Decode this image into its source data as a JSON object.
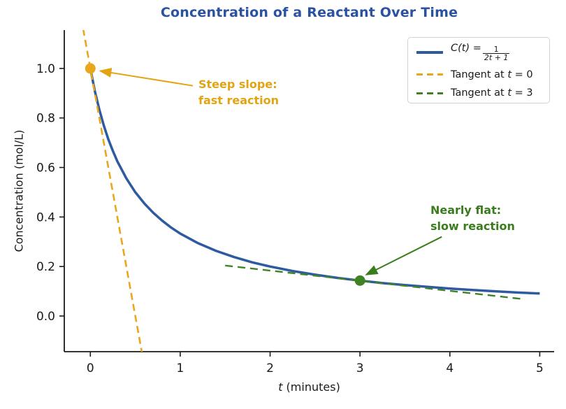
{
  "title": {
    "text": "Concentration of a Reactant Over Time",
    "color": "#2b52a1"
  },
  "axes": {
    "x_label_var": "t",
    "x_label_rest": " (minutes)",
    "y_label": "Concentration (mol/L)",
    "x_tick_labels": [
      "0",
      "1",
      "2",
      "3",
      "4",
      "5"
    ],
    "y_tick_labels": [
      "0.0",
      "0.2",
      "0.4",
      "0.6",
      "0.8",
      "1.0"
    ],
    "axis_color": "#1a1a1a"
  },
  "legend": {
    "entries": [
      {
        "kind": "fraction",
        "prefix": "C(t)",
        "equals": "=",
        "frac_num": "1",
        "frac_den": "2t + 1",
        "full_label": "C(t) = 1/(2t+1)",
        "color": "#2e5b9f",
        "style": "solid"
      },
      {
        "kind": "plain",
        "pre": "Tangent at ",
        "var": "t",
        "post": " = 0",
        "full_label": "Tangent at t = 0",
        "color": "#e8a71c",
        "style": "dashed"
      },
      {
        "kind": "plain",
        "pre": "Tangent at ",
        "var": "t",
        "post": " = 3",
        "full_label": "Tangent at t = 3",
        "color": "#3e8427",
        "style": "dashed"
      }
    ]
  },
  "annotations": [
    {
      "lines": [
        "Steep slope:",
        "fast reaction"
      ],
      "color": "#e3a313",
      "arrow_from": [
        1.14,
        0.93
      ],
      "arrow_to": [
        0.11,
        0.99
      ]
    },
    {
      "lines": [
        "Nearly flat:",
        "slow reaction"
      ],
      "color": "#3a7d1f",
      "arrow_from": [
        3.91,
        0.32
      ],
      "arrow_to": [
        3.07,
        0.167
      ]
    }
  ],
  "chart_data": {
    "type": "line",
    "title": "Concentration of a Reactant Over Time",
    "xlabel": "t (minutes)",
    "ylabel": "Concentration (mol/L)",
    "xlim": [
      -0.29,
      5.16
    ],
    "ylim": [
      -0.144,
      1.155
    ],
    "x_ticks": [
      0,
      1,
      2,
      3,
      4,
      5
    ],
    "y_ticks": [
      0.0,
      0.2,
      0.4,
      0.6,
      0.8,
      1.0
    ],
    "grid": false,
    "legend_position": "upper right",
    "series": [
      {
        "name": "C(t) = 1/(2t+1)",
        "style": "solid",
        "color": "#2e5b9f",
        "width": 3.5,
        "dash": "",
        "x": [
          0,
          0.05,
          0.1,
          0.15,
          0.2,
          0.25,
          0.3,
          0.4,
          0.5,
          0.6,
          0.7,
          0.8,
          0.9,
          1.0,
          1.2,
          1.4,
          1.6,
          1.8,
          2.0,
          2.25,
          2.5,
          2.75,
          3.0,
          3.25,
          3.5,
          3.75,
          4.0,
          4.25,
          4.5,
          4.75,
          5.0
        ],
        "y": [
          1.0,
          0.909,
          0.833,
          0.769,
          0.714,
          0.667,
          0.625,
          0.556,
          0.5,
          0.455,
          0.417,
          0.385,
          0.357,
          0.333,
          0.294,
          0.263,
          0.238,
          0.217,
          0.2,
          0.182,
          0.167,
          0.154,
          0.143,
          0.133,
          0.125,
          0.118,
          0.111,
          0.105,
          0.1,
          0.095,
          0.091
        ]
      },
      {
        "name": "Tangent at t = 0",
        "style": "dashed",
        "color": "#e8a71c",
        "width": 2.6,
        "dash": "10,6",
        "slope": -2,
        "x": [
          -0.08,
          0.6
        ],
        "y": [
          1.16,
          -0.2
        ]
      },
      {
        "name": "Tangent at t = 3",
        "style": "dashed",
        "color": "#3e8427",
        "width": 2.4,
        "dash": "11,7",
        "slope": -0.0408,
        "x": [
          1.5,
          4.8
        ],
        "y": [
          0.204,
          0.069
        ]
      }
    ],
    "points": [
      {
        "x": 0,
        "y": 1.0,
        "color": "#e8a71c",
        "label": "tangent point at t = 0"
      },
      {
        "x": 3,
        "y": 0.143,
        "color": "#3e8427",
        "label": "tangent point at t = 3"
      }
    ]
  }
}
